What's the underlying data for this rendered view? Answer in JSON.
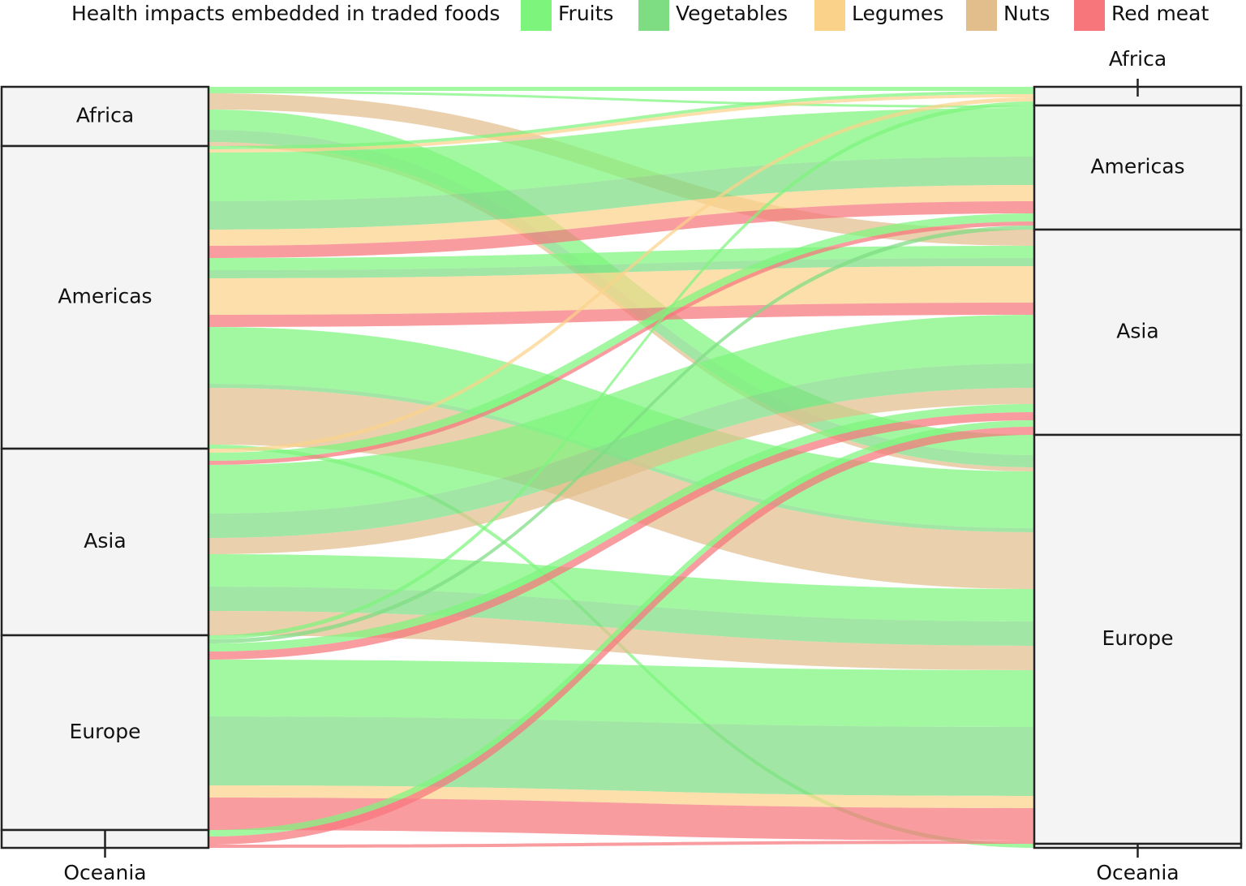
{
  "chart_data": {
    "type": "sankey",
    "title": "Health impacts embedded in traded foods",
    "series": [
      {
        "name": "Fruits",
        "color": "#7df57d"
      },
      {
        "name": "Vegetables",
        "color": "#7edc82"
      },
      {
        "name": "Legumes",
        "color": "#fbd28a"
      },
      {
        "name": "Nuts",
        "color": "#e2be8c"
      },
      {
        "name": "Red meat",
        "color": "#f7767c"
      }
    ],
    "source_nodes": [
      "Africa",
      "Americas",
      "Asia",
      "Europe",
      "Oceania"
    ],
    "target_nodes": [
      "Africa",
      "Americas",
      "Asia",
      "Europe",
      "Oceania"
    ],
    "flows": [
      {
        "source": "Africa",
        "target": "Africa",
        "category": "Fruits",
        "value": 5
      },
      {
        "source": "Africa",
        "target": "Americas",
        "category": "Fruits",
        "value": 3
      },
      {
        "source": "Africa",
        "target": "Asia",
        "category": "Nuts",
        "value": 20
      },
      {
        "source": "Africa",
        "target": "Europe",
        "category": "Fruits",
        "value": 25
      },
      {
        "source": "Africa",
        "target": "Europe",
        "category": "Vegetables",
        "value": 15
      },
      {
        "source": "Africa",
        "target": "Europe",
        "category": "Nuts",
        "value": 5
      },
      {
        "source": "Americas",
        "target": "Africa",
        "category": "Fruits",
        "value": 4
      },
      {
        "source": "Americas",
        "target": "Africa",
        "category": "Legumes",
        "value": 4
      },
      {
        "source": "Americas",
        "target": "Americas",
        "category": "Fruits",
        "value": 60
      },
      {
        "source": "Americas",
        "target": "Americas",
        "category": "Vegetables",
        "value": 35
      },
      {
        "source": "Americas",
        "target": "Americas",
        "category": "Legumes",
        "value": 20
      },
      {
        "source": "Americas",
        "target": "Americas",
        "category": "Red meat",
        "value": 15
      },
      {
        "source": "Americas",
        "target": "Asia",
        "category": "Fruits",
        "value": 15
      },
      {
        "source": "Americas",
        "target": "Asia",
        "category": "Vegetables",
        "value": 10
      },
      {
        "source": "Americas",
        "target": "Asia",
        "category": "Legumes",
        "value": 45
      },
      {
        "source": "Americas",
        "target": "Asia",
        "category": "Red meat",
        "value": 15
      },
      {
        "source": "Americas",
        "target": "Europe",
        "category": "Fruits",
        "value": 70
      },
      {
        "source": "Americas",
        "target": "Europe",
        "category": "Vegetables",
        "value": 5
      },
      {
        "source": "Americas",
        "target": "Europe",
        "category": "Nuts",
        "value": 70
      },
      {
        "source": "Americas",
        "target": "Oceania",
        "category": "Fruits",
        "value": 5
      },
      {
        "source": "Asia",
        "target": "Africa",
        "category": "Legumes",
        "value": 5
      },
      {
        "source": "Asia",
        "target": "Americas",
        "category": "Fruits",
        "value": 10
      },
      {
        "source": "Asia",
        "target": "Americas",
        "category": "Red meat",
        "value": 5
      },
      {
        "source": "Asia",
        "target": "Asia",
        "category": "Fruits",
        "value": 60
      },
      {
        "source": "Asia",
        "target": "Asia",
        "category": "Vegetables",
        "value": 30
      },
      {
        "source": "Asia",
        "target": "Asia",
        "category": "Nuts",
        "value": 20
      },
      {
        "source": "Asia",
        "target": "Europe",
        "category": "Fruits",
        "value": 40
      },
      {
        "source": "Asia",
        "target": "Europe",
        "category": "Vegetables",
        "value": 30
      },
      {
        "source": "Asia",
        "target": "Europe",
        "category": "Nuts",
        "value": 30
      },
      {
        "source": "Europe",
        "target": "Africa",
        "category": "Fruits",
        "value": 5
      },
      {
        "source": "Europe",
        "target": "Americas",
        "category": "Vegetables",
        "value": 5
      },
      {
        "source": "Europe",
        "target": "Asia",
        "category": "Fruits",
        "value": 10
      },
      {
        "source": "Europe",
        "target": "Asia",
        "category": "Red meat",
        "value": 10
      },
      {
        "source": "Europe",
        "target": "Europe",
        "category": "Fruits",
        "value": 70
      },
      {
        "source": "Europe",
        "target": "Europe",
        "category": "Vegetables",
        "value": 85
      },
      {
        "source": "Europe",
        "target": "Europe",
        "category": "Legumes",
        "value": 15
      },
      {
        "source": "Europe",
        "target": "Europe",
        "category": "Red meat",
        "value": 40
      },
      {
        "source": "Oceania",
        "target": "Asia",
        "category": "Fruits",
        "value": 8
      },
      {
        "source": "Oceania",
        "target": "Asia",
        "category": "Red meat",
        "value": 10
      },
      {
        "source": "Oceania",
        "target": "Europe",
        "category": "Red meat",
        "value": 4
      }
    ]
  }
}
